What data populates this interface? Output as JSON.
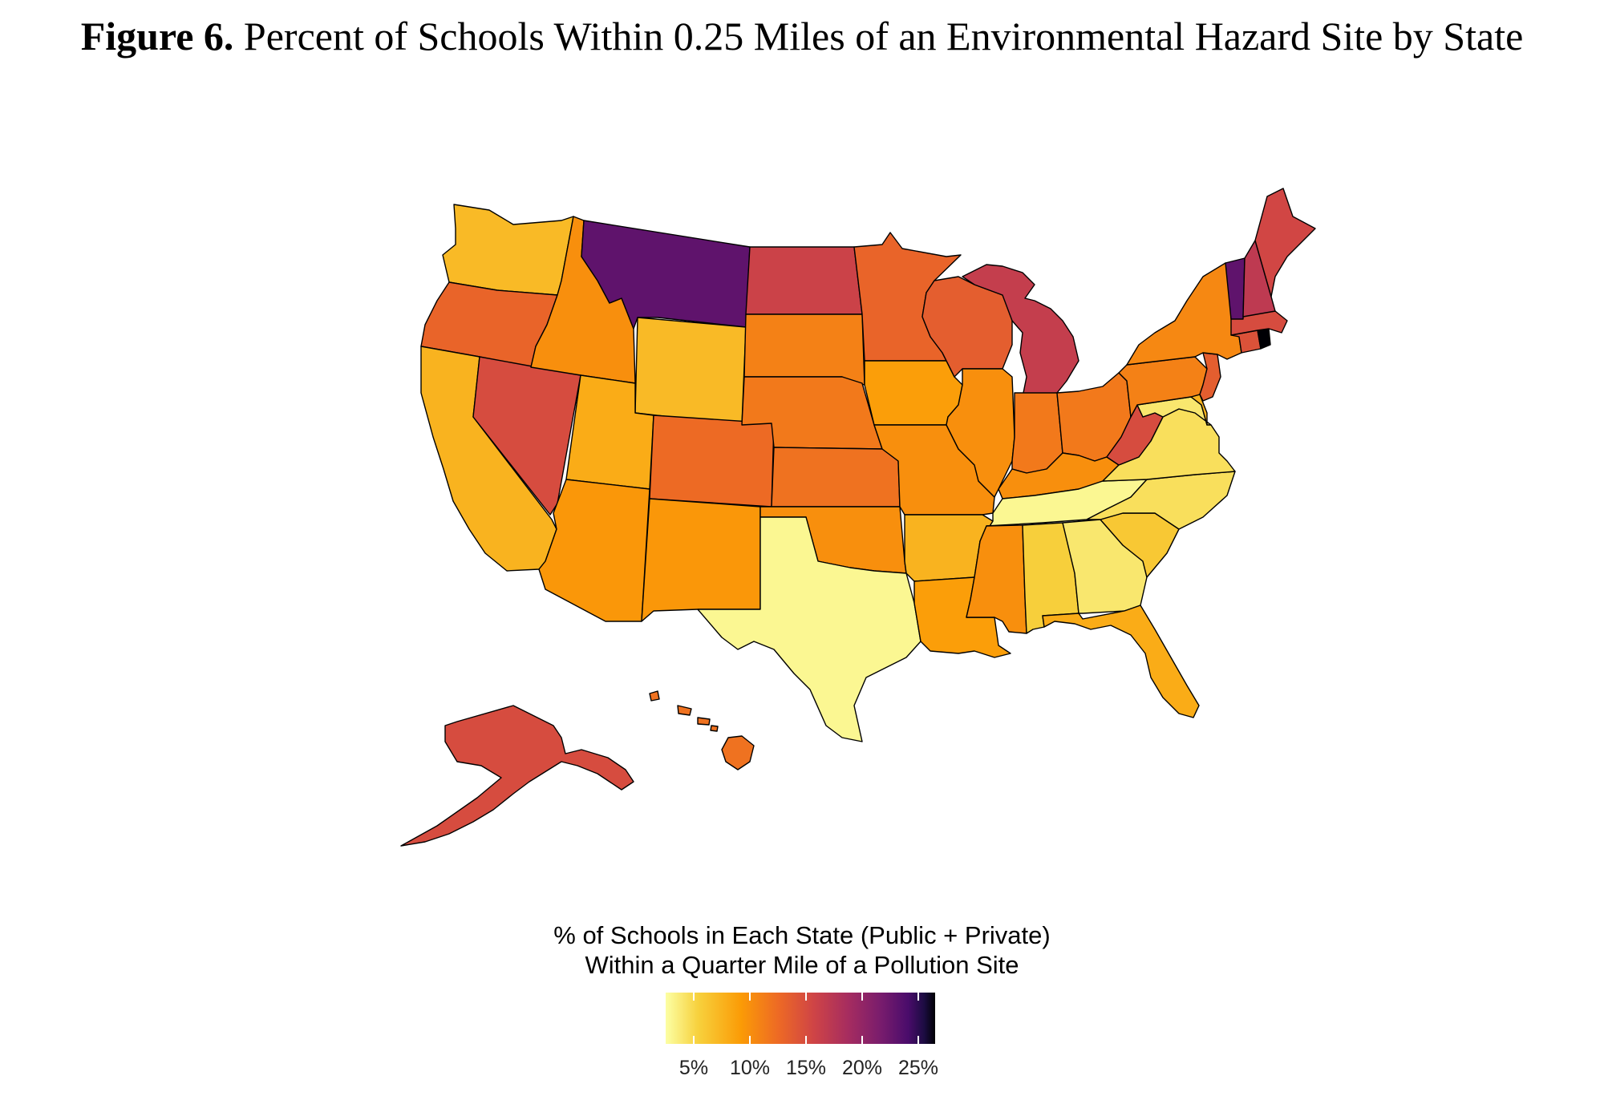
{
  "title": {
    "bold": "Figure 6.",
    "text": "Percent of Schools Within 0.25 Miles of an Environmental Hazard Site by State"
  },
  "legend": {
    "title_line1": "% of Schools in Each State (Public + Private)",
    "title_line2": "Within a Quarter Mile of a Pollution Site",
    "ticks": [
      "5%",
      "10%",
      "15%",
      "20%",
      "25%"
    ],
    "tick_values": [
      5,
      10,
      15,
      20,
      25
    ],
    "range": [
      2.5,
      26.5
    ],
    "palette": "inferno (reversed)"
  },
  "map_data": {
    "states": [
      {
        "id": "WA",
        "value": 7.0
      },
      {
        "id": "OR",
        "value": 13.0
      },
      {
        "id": "CA",
        "value": 7.5
      },
      {
        "id": "NV",
        "value": 15.0
      },
      {
        "id": "ID",
        "value": 10.0
      },
      {
        "id": "MT",
        "value": 23.0
      },
      {
        "id": "WY",
        "value": 7.0
      },
      {
        "id": "UT",
        "value": 8.0
      },
      {
        "id": "AZ",
        "value": 9.5
      },
      {
        "id": "CO",
        "value": 12.5
      },
      {
        "id": "NM",
        "value": 9.5
      },
      {
        "id": "ND",
        "value": 16.0
      },
      {
        "id": "SD",
        "value": 11.0
      },
      {
        "id": "NE",
        "value": 11.5
      },
      {
        "id": "KS",
        "value": 12.0
      },
      {
        "id": "OK",
        "value": 10.0
      },
      {
        "id": "TX",
        "value": 3.0
      },
      {
        "id": "MN",
        "value": 13.0
      },
      {
        "id": "IA",
        "value": 9.0
      },
      {
        "id": "MO",
        "value": 10.0
      },
      {
        "id": "AR",
        "value": 7.5
      },
      {
        "id": "LA",
        "value": 9.0
      },
      {
        "id": "WI",
        "value": 13.5
      },
      {
        "id": "IL",
        "value": 10.0
      },
      {
        "id": "MI",
        "value": 16.5
      },
      {
        "id": "IN",
        "value": 11.5
      },
      {
        "id": "OH",
        "value": 11.5
      },
      {
        "id": "KY",
        "value": 10.0
      },
      {
        "id": "TN",
        "value": 3.0
      },
      {
        "id": "MS",
        "value": 10.0
      },
      {
        "id": "AL",
        "value": 5.5
      },
      {
        "id": "GA",
        "value": 4.0
      },
      {
        "id": "FL",
        "value": 8.0
      },
      {
        "id": "SC",
        "value": 6.0
      },
      {
        "id": "NC",
        "value": 4.5
      },
      {
        "id": "VA",
        "value": 4.5
      },
      {
        "id": "WV",
        "value": 15.0
      },
      {
        "id": "MD",
        "value": 4.0
      },
      {
        "id": "DE",
        "value": 7.5
      },
      {
        "id": "PA",
        "value": 11.0
      },
      {
        "id": "NJ",
        "value": 13.5
      },
      {
        "id": "NY",
        "value": 10.5
      },
      {
        "id": "CT",
        "value": 14.5
      },
      {
        "id": "RI",
        "value": 26.5
      },
      {
        "id": "MA",
        "value": 15.0
      },
      {
        "id": "VT",
        "value": 23.0
      },
      {
        "id": "NH",
        "value": 17.0
      },
      {
        "id": "ME",
        "value": 15.5
      },
      {
        "id": "AK",
        "value": 15.0
      },
      {
        "id": "HI",
        "value": 12.0
      }
    ]
  }
}
